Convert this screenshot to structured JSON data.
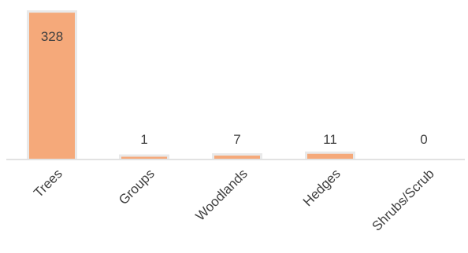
{
  "chart_data": {
    "type": "bar",
    "categories": [
      "Trees",
      "Groups",
      "Woodlands",
      "Hedges",
      "Shrubs/Scrub"
    ],
    "values": [
      328,
      1,
      7,
      11,
      0
    ],
    "data_labels": [
      "328",
      "1",
      "7",
      "11",
      "0"
    ],
    "title": "",
    "xlabel": "",
    "ylabel": "",
    "ylim": [
      0,
      330
    ],
    "grid": false,
    "legend": "none",
    "colors": {
      "bar": "#F5A97A",
      "bar_shadow": "#E9E9E9",
      "axis": "#D9D9D9",
      "label_text": "#404040"
    }
  }
}
